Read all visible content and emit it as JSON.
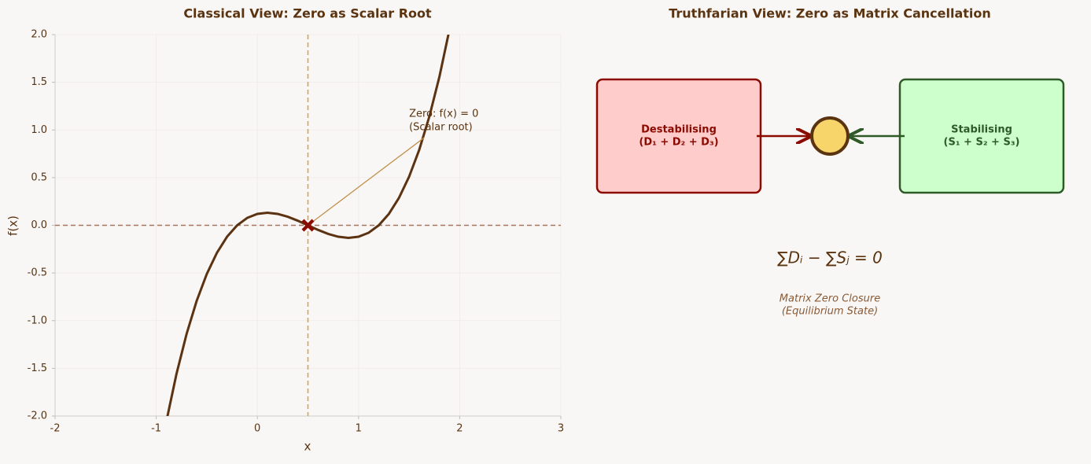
{
  "chart_data": {
    "type": "line",
    "title": "Classical View: Zero as Scalar Root",
    "x_label": "x",
    "y_label": "f(x)",
    "x": [
      -0.9,
      -0.8,
      -0.7,
      -0.6,
      -0.5,
      -0.4,
      -0.3,
      -0.2,
      -0.1,
      0,
      0.1,
      0.2,
      0.3,
      0.4,
      0.5,
      0.6,
      0.7,
      0.8,
      0.9,
      1.0,
      1.1,
      1.2,
      1.3,
      1.4,
      1.5,
      1.6,
      1.7,
      1.8,
      1.9
    ],
    "series": [
      {
        "color": "#5c3312",
        "values": [
          -2.058,
          -1.56,
          -1.14,
          -0.792,
          -0.51,
          -0.288,
          -0.12,
          0,
          0.078,
          0.12,
          0.132,
          0.12,
          0.09,
          0.048,
          0,
          -0.048,
          -0.09,
          -0.12,
          -0.132,
          -0.12,
          -0.078,
          0,
          0.12,
          0.288,
          0.51,
          0.792,
          1.14,
          1.56,
          2.058
        ]
      }
    ],
    "zero_point": {
      "x": 0.5,
      "y": 0,
      "color": "#8b0a00"
    },
    "reference_lines": {
      "x": 0.5,
      "x_color": "#d4a35a",
      "y": 0,
      "y_color": "#a8755e"
    },
    "annotation": [
      "Zero: f(x) = 0",
      "(Scalar root)"
    ],
    "xlim": [
      -2,
      3
    ],
    "xticks": [
      -2,
      -1,
      0,
      1,
      2,
      3
    ],
    "ylim": [
      -2,
      2
    ],
    "yticks": [
      {
        "value": -2,
        "label": "-2.0"
      },
      {
        "value": -1.5,
        "label": "-1.5"
      },
      {
        "value": -1,
        "label": "-1.0"
      },
      {
        "value": -0.5,
        "label": "-0.5"
      },
      {
        "value": 0,
        "label": "0.0"
      },
      {
        "value": 0.5,
        "label": "0.5"
      },
      {
        "value": 1,
        "label": "1.0"
      },
      {
        "value": 1.5,
        "label": "1.5"
      },
      {
        "value": 2,
        "label": "2.0"
      }
    ],
    "grid": true
  },
  "diagram": {
    "title": "Truthfarian View: Zero as Matrix Cancellation",
    "left_box": [
      "Destabilising",
      "(D₁ + D₂ + D₃)"
    ],
    "right_box": [
      "Stabilising",
      "(S₁ + S₂ + S₃)"
    ],
    "equation": "∑Dᵢ − ∑Sⱼ = 0",
    "caption": [
      "Matrix Zero Closure",
      "(Equilibrium State)"
    ]
  }
}
